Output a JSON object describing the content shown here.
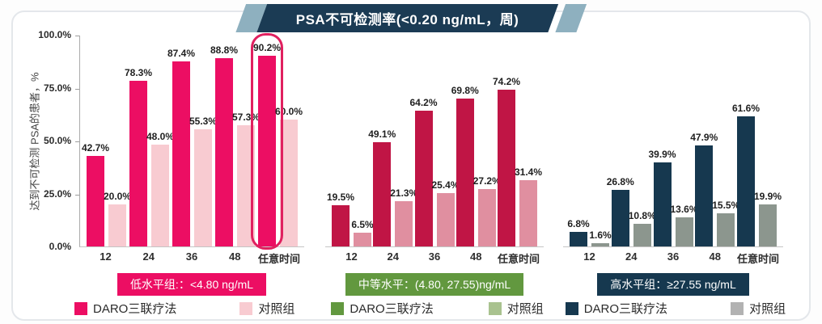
{
  "title": "PSA不可检测率(<0.20 ng/mL，周)",
  "colors": {
    "banner_navy": "#1b3b54",
    "banner_accent": "#8eb0bf",
    "highlight_outline": "#e0205f",
    "low_daro": "#ec0e63",
    "low_control": "#f8cbd1",
    "mid_daro": "#c01545",
    "mid_control": "#e08fa0",
    "mid_legend_daro": "#62983f",
    "mid_legend_control": "#a9c28f",
    "high_daro": "#16384f",
    "high_control": "#8c968e",
    "high_legend_control": "#b2b2b2"
  },
  "y_axis": {
    "label": "达到不可检测 PSA的患者，%",
    "ticks": [
      "100.0%",
      "75.0%",
      "50.0%",
      "25.0%",
      "0.0%"
    ]
  },
  "chart_data": [
    {
      "type": "bar",
      "id": "low-level",
      "group_label": "低水平组:：<4.80 ng/mL",
      "group_label_color": "#ec0e63",
      "categories": [
        "12",
        "24",
        "36",
        "48",
        "任意时间"
      ],
      "ylim": [
        0,
        100
      ],
      "series": [
        {
          "name": "DARO三联疗法",
          "color": "#ec0e63",
          "values": [
            42.7,
            78.3,
            87.4,
            88.8,
            90.2
          ]
        },
        {
          "name": "对照组",
          "color": "#f8cbd1",
          "values": [
            20.0,
            48.0,
            55.3,
            57.3,
            60.0
          ]
        }
      ],
      "highlight": {
        "category_index": 4,
        "series_index": 0,
        "value": 90.2
      }
    },
    {
      "type": "bar",
      "id": "mid-level",
      "group_label": "中等水平：(4.80, 27.55)ng/mL",
      "group_label_color": "#62983f",
      "categories": [
        "12",
        "24",
        "36",
        "48",
        "任意时间"
      ],
      "ylim": [
        0,
        100
      ],
      "series": [
        {
          "name": "DARO三联疗法",
          "color": "#c01545",
          "values": [
            19.5,
            49.1,
            64.2,
            69.8,
            74.2
          ]
        },
        {
          "name": "对照组",
          "color": "#e08fa0",
          "values": [
            6.5,
            21.3,
            25.4,
            27.2,
            31.4
          ]
        }
      ]
    },
    {
      "type": "bar",
      "id": "high-level",
      "group_label": "高水平组：≥27.55 ng/mL",
      "group_label_color": "#16384f",
      "categories": [
        "12",
        "24",
        "36",
        "48",
        "任意时间"
      ],
      "ylim": [
        0,
        100
      ],
      "series": [
        {
          "name": "DARO三联疗法",
          "color": "#16384f",
          "values": [
            6.8,
            26.8,
            39.9,
            47.9,
            61.6
          ]
        },
        {
          "name": "对照组",
          "color": "#8c968e",
          "values": [
            1.6,
            10.8,
            13.6,
            15.5,
            19.9
          ]
        }
      ]
    }
  ],
  "legend": [
    {
      "label": "DARO三联疗法",
      "color": "#ec0e63"
    },
    {
      "label": "对照组",
      "color": "#f8cbd1"
    },
    {
      "label": "DARO三联疗法",
      "color": "#62983f"
    },
    {
      "label": "对照组",
      "color": "#a9c28f"
    },
    {
      "label": "DARO三联疗法",
      "color": "#16384f"
    },
    {
      "label": "对照组",
      "color": "#b2b2b2"
    }
  ]
}
